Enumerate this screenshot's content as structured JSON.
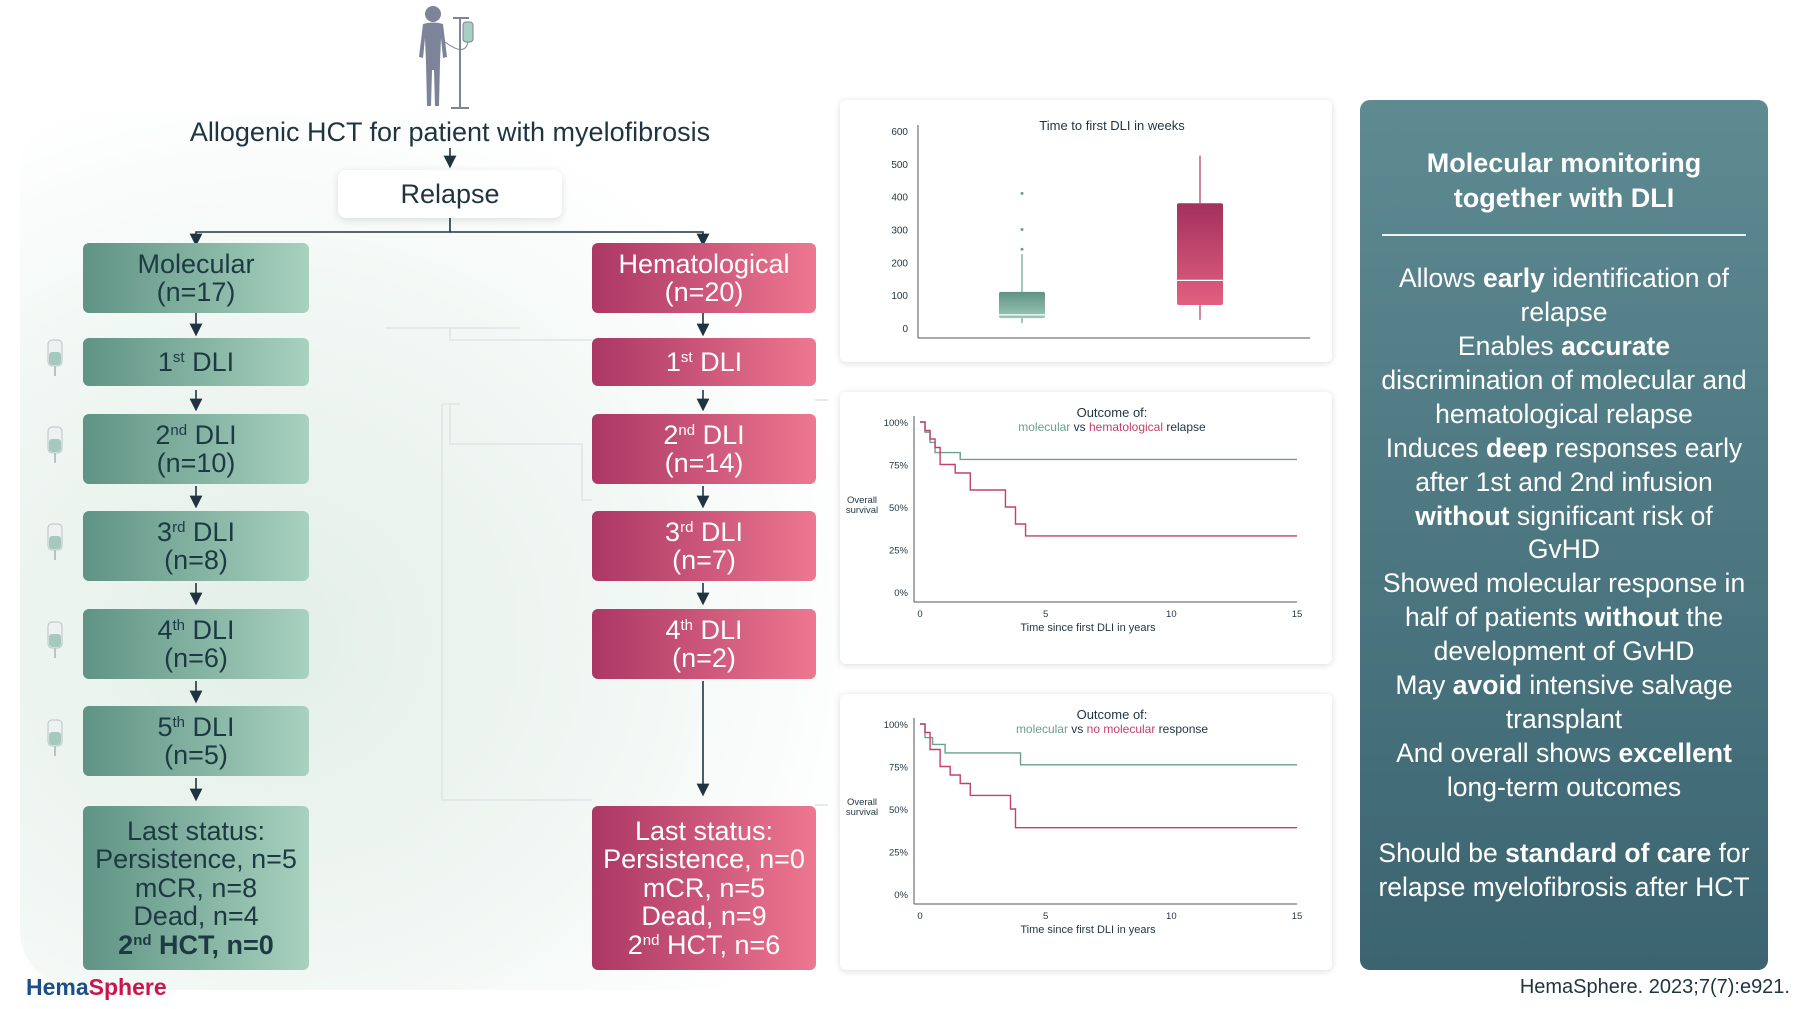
{
  "title": "Allogenic HCT for patient with myelofibrosis",
  "relapse_label": "Relapse",
  "molecular": {
    "header": {
      "name": "Molecular",
      "n": "(n=17)"
    },
    "dli": [
      {
        "num": "1",
        "sup": "st",
        "rest": " DLI",
        "n": ""
      },
      {
        "num": "2",
        "sup": "nd",
        "rest": " DLI",
        "n": "(n=10)"
      },
      {
        "num": "3",
        "sup": "rd",
        "rest": " DLI",
        "n": "(n=8)"
      },
      {
        "num": "4",
        "sup": "th",
        "rest": " DLI",
        "n": "(n=6)"
      },
      {
        "num": "5",
        "sup": "th",
        "rest": " DLI",
        "n": "(n=5)"
      }
    ],
    "last_status": {
      "title": "Last status:",
      "persistence": "Persistence, n=5",
      "mcr": "mCR, n=8",
      "dead": "Dead, n=4",
      "hct_num": "2",
      "hct_sup": "nd",
      "hct_rest": " HCT, n=0"
    }
  },
  "hematological": {
    "header": {
      "name": "Hematological",
      "n": "(n=20)"
    },
    "dli": [
      {
        "num": "1",
        "sup": "st",
        "rest": " DLI",
        "n": ""
      },
      {
        "num": "2",
        "sup": "nd",
        "rest": " DLI",
        "n": "(n=14)"
      },
      {
        "num": "3",
        "sup": "rd",
        "rest": " DLI",
        "n": "(n=7)"
      },
      {
        "num": "4",
        "sup": "th",
        "rest": " DLI",
        "n": "(n=2)"
      }
    ],
    "last_status": {
      "title": "Last status:",
      "persistence": "Persistence, n=0",
      "mcr": "mCR, n=5",
      "dead": "Dead, n=9",
      "hct_num": "2",
      "hct_sup": "nd",
      "hct_rest": " HCT, n=6"
    }
  },
  "colors": {
    "molecular": "#5f9384",
    "hematological": "#c2406b",
    "panel_dark": "#3b6470"
  },
  "chart_data": [
    {
      "type": "box",
      "title": "Time to first DLI in weeks",
      "y_ticks": [
        "600",
        "500",
        "400",
        "300",
        "200",
        "100",
        "0"
      ],
      "ylim": [
        0,
        600
      ],
      "boxes": [
        {
          "group": "molecular",
          "whisker_low": 15,
          "q1": 30,
          "median": 40,
          "q3": 110,
          "whisker_high": 225,
          "outliers": [
            240,
            300,
            410
          ]
        },
        {
          "group": "hematological",
          "whisker_low": 25,
          "q1": 70,
          "median": 145,
          "q3": 380,
          "whisker_high": 525,
          "outliers": []
        }
      ]
    },
    {
      "type": "line",
      "title": "Outcome of:",
      "subtitle_parts": [
        "molecular",
        " vs ",
        "hematological",
        " relapse"
      ],
      "ylabel": "Overall survival",
      "xlabel": "Time since first DLI in years",
      "y_ticks": [
        "100%",
        "75%",
        "50%",
        "25%",
        "0%"
      ],
      "x_ticks": [
        "0",
        "5",
        "10",
        "15"
      ],
      "xlim": [
        0,
        15
      ],
      "ylim": [
        0,
        100
      ],
      "series": [
        {
          "name": "molecular",
          "x": [
            0,
            0.2,
            0.4,
            0.6,
            1.0,
            1.6,
            15
          ],
          "y": [
            100,
            94,
            88,
            82,
            82,
            78,
            78
          ]
        },
        {
          "name": "hematological",
          "x": [
            0,
            0.2,
            0.4,
            0.6,
            0.8,
            1.4,
            2.0,
            3.4,
            3.8,
            4.2,
            15
          ],
          "y": [
            100,
            95,
            90,
            85,
            75,
            70,
            60,
            50,
            40,
            33,
            33
          ]
        }
      ]
    },
    {
      "type": "line",
      "title": "Outcome of:",
      "subtitle_parts": [
        "molecular",
        " vs ",
        "no molecular",
        " response"
      ],
      "ylabel": "Overall survival",
      "xlabel": "Time since first DLI in years",
      "y_ticks": [
        "100%",
        "75%",
        "50%",
        "25%",
        "0%"
      ],
      "x_ticks": [
        "0",
        "5",
        "10",
        "15"
      ],
      "xlim": [
        0,
        15
      ],
      "ylim": [
        0,
        100
      ],
      "series": [
        {
          "name": "molecular",
          "x": [
            0,
            0.2,
            0.5,
            1.0,
            4.0,
            15
          ],
          "y": [
            100,
            92,
            88,
            83,
            76,
            76
          ]
        },
        {
          "name": "no molecular",
          "x": [
            0,
            0.2,
            0.4,
            0.8,
            1.2,
            1.6,
            2.0,
            3.6,
            3.8,
            15
          ],
          "y": [
            100,
            95,
            85,
            75,
            70,
            65,
            58,
            50,
            39,
            39
          ]
        }
      ]
    }
  ],
  "summary": {
    "title_line1": "Molecular monitoring",
    "title_line2": "together with DLI",
    "p1_pre": "Allows ",
    "p1_bold": "early",
    "p1_post": " identification of relapse",
    "p2_pre": "Enables ",
    "p2_bold": "accurate",
    "p2_post": " discrimination of molecular and hematological relapse",
    "p3_pre": "Induces ",
    "p3_bold": "deep",
    "p3_post": " responses early after 1st and 2nd infusion ",
    "p3_bold2": "without",
    "p3_post2": " significant risk of GvHD",
    "p4_pre": "Showed molecular response in half of patients ",
    "p4_bold": "without",
    "p4_post": " the development of GvHD",
    "p5_pre": "May ",
    "p5_bold": "avoid",
    "p5_post": " intensive salvage transplant",
    "p6_pre": "And overall shows ",
    "p6_bold": "excellent",
    "p6_post": " long-term outcomes",
    "p7_pre": "Should be ",
    "p7_bold": "standard of care",
    "p7_post": " for relapse myelofibrosis after HCT"
  },
  "footer": {
    "brand_a": "Hema",
    "brand_b": "Sphere",
    "citation": "HemaSphere. 2023;7(7):e921."
  }
}
